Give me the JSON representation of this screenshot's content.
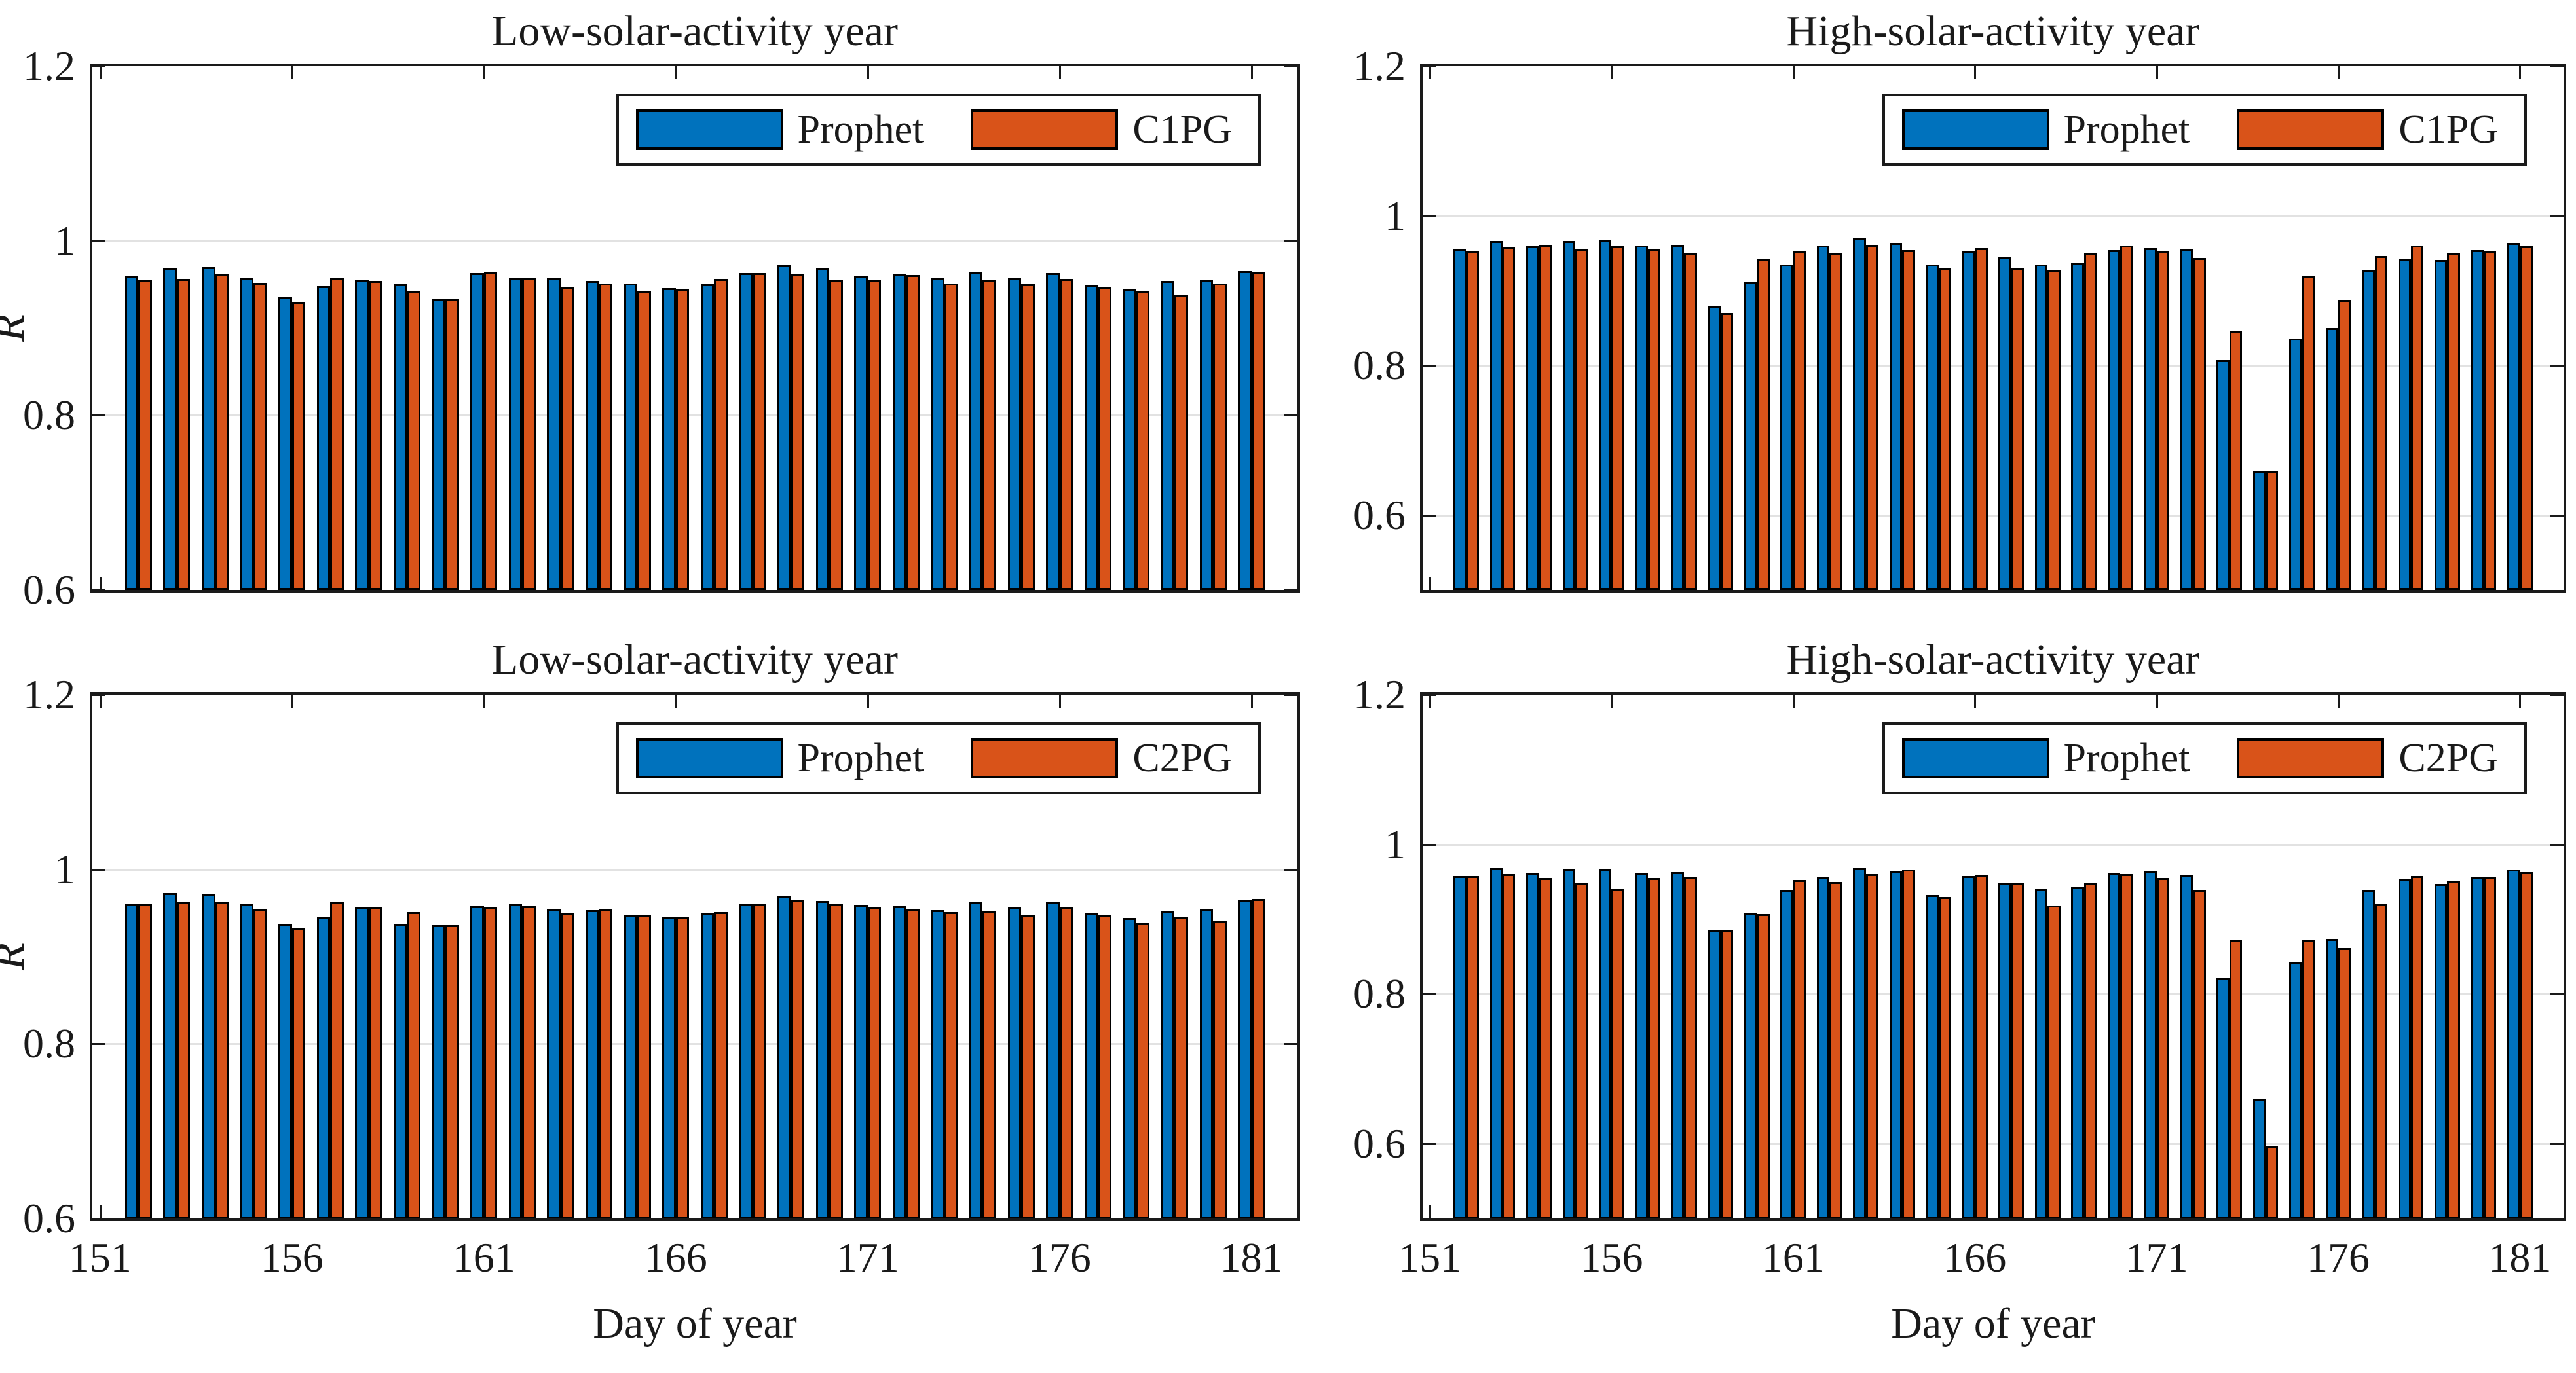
{
  "figure": {
    "background": "#ffffff"
  },
  "colors": {
    "prophet_blue": "#0072BD",
    "model_orange": "#D95319",
    "bar_edge": "#000000",
    "grid": "#E2E2E2",
    "axis": "#1A1A1A"
  },
  "chart_data": [
    {
      "type": "bar",
      "title": "Low-solar-activity year",
      "ylabel": "R",
      "xlabel": "",
      "ylim": [
        0.6,
        1.2
      ],
      "yticks": [
        1.2,
        1,
        0.8,
        0.6
      ],
      "ytick_labels": [
        "1.2",
        "1",
        "0.8",
        "0.6"
      ],
      "xlim": [
        150.8,
        182.2
      ],
      "xticks": [
        151,
        156,
        161,
        166,
        171,
        176,
        181
      ],
      "show_xtick_labels": false,
      "legend_position": "top-right",
      "grid": "horizontal",
      "days": [
        152,
        153,
        154,
        155,
        156,
        157,
        158,
        159,
        160,
        161,
        162,
        163,
        164,
        165,
        166,
        167,
        168,
        169,
        170,
        171,
        172,
        173,
        174,
        175,
        176,
        177,
        178,
        179,
        180,
        181
      ],
      "series": [
        {
          "name": "Prophet",
          "values": [
            0.959,
            0.969,
            0.97,
            0.957,
            0.935,
            0.948,
            0.955,
            0.95,
            0.934,
            0.963,
            0.957,
            0.957,
            0.954,
            0.951,
            0.946,
            0.95,
            0.963,
            0.972,
            0.968,
            0.959,
            0.962,
            0.958,
            0.964,
            0.957,
            0.963,
            0.949,
            0.945,
            0.954,
            0.955,
            0.965
          ]
        },
        {
          "name": "C1PG",
          "values": [
            0.955,
            0.956,
            0.962,
            0.952,
            0.93,
            0.958,
            0.954,
            0.943,
            0.934,
            0.964,
            0.957,
            0.947,
            0.951,
            0.942,
            0.944,
            0.956,
            0.963,
            0.962,
            0.955,
            0.955,
            0.961,
            0.951,
            0.955,
            0.95,
            0.956,
            0.947,
            0.943,
            0.938,
            0.951,
            0.964
          ]
        }
      ]
    },
    {
      "type": "bar",
      "title": "High-solar-activity year",
      "ylabel": "",
      "xlabel": "",
      "ylim": [
        0.5,
        1.2
      ],
      "yticks": [
        1.2,
        1,
        0.8,
        0.6
      ],
      "ytick_labels": [
        "1.2",
        "1",
        "0.8",
        "0.6"
      ],
      "xlim": [
        150.8,
        182.2
      ],
      "xticks": [
        151,
        156,
        161,
        166,
        171,
        176,
        181
      ],
      "show_xtick_labels": false,
      "legend_position": "top-right",
      "grid": "horizontal",
      "days": [
        152,
        153,
        154,
        155,
        156,
        157,
        158,
        159,
        160,
        161,
        162,
        163,
        164,
        165,
        166,
        167,
        168,
        169,
        170,
        171,
        172,
        173,
        174,
        175,
        176,
        177,
        178,
        179,
        180,
        181
      ],
      "series": [
        {
          "name": "Prophet",
          "values": [
            0.955,
            0.966,
            0.959,
            0.966,
            0.967,
            0.96,
            0.961,
            0.88,
            0.912,
            0.935,
            0.96,
            0.97,
            0.964,
            0.935,
            0.952,
            0.945,
            0.935,
            0.937,
            0.954,
            0.957,
            0.955,
            0.807,
            0.658,
            0.836,
            0.85,
            0.928,
            0.943,
            0.941,
            0.954,
            0.964
          ]
        },
        {
          "name": "C1PG",
          "values": [
            0.952,
            0.958,
            0.961,
            0.955,
            0.959,
            0.956,
            0.95,
            0.87,
            0.943,
            0.952,
            0.95,
            0.961,
            0.954,
            0.93,
            0.957,
            0.93,
            0.928,
            0.95,
            0.96,
            0.952,
            0.944,
            0.846,
            0.659,
            0.92,
            0.888,
            0.946,
            0.96,
            0.95,
            0.953,
            0.959
          ]
        }
      ]
    },
    {
      "type": "bar",
      "title": "Low-solar-activity year",
      "ylabel": "R",
      "xlabel": "Day of year",
      "ylim": [
        0.6,
        1.2
      ],
      "yticks": [
        1.2,
        1,
        0.8,
        0.6
      ],
      "ytick_labels": [
        "1.2",
        "1",
        "0.8",
        "0.6"
      ],
      "xlim": [
        150.8,
        182.2
      ],
      "xticks": [
        151,
        156,
        161,
        166,
        171,
        176,
        181
      ],
      "show_xtick_labels": true,
      "legend_position": "top-right",
      "grid": "horizontal",
      "days": [
        152,
        153,
        154,
        155,
        156,
        157,
        158,
        159,
        160,
        161,
        162,
        163,
        164,
        165,
        166,
        167,
        168,
        169,
        170,
        171,
        172,
        173,
        174,
        175,
        176,
        177,
        178,
        179,
        180,
        181
      ],
      "series": [
        {
          "name": "Prophet",
          "values": [
            0.96,
            0.973,
            0.972,
            0.96,
            0.937,
            0.946,
            0.956,
            0.937,
            0.936,
            0.958,
            0.96,
            0.955,
            0.953,
            0.947,
            0.945,
            0.95,
            0.96,
            0.97,
            0.964,
            0.959,
            0.958,
            0.953,
            0.963,
            0.956,
            0.963,
            0.95,
            0.944,
            0.952,
            0.954,
            0.965
          ]
        },
        {
          "name": "C2PG",
          "values": [
            0.96,
            0.962,
            0.962,
            0.954,
            0.933,
            0.963,
            0.956,
            0.951,
            0.936,
            0.957,
            0.958,
            0.95,
            0.955,
            0.947,
            0.946,
            0.951,
            0.961,
            0.965,
            0.961,
            0.957,
            0.955,
            0.951,
            0.952,
            0.948,
            0.957,
            0.948,
            0.938,
            0.945,
            0.941,
            0.966
          ]
        }
      ]
    },
    {
      "type": "bar",
      "title": "High-solar-activity year",
      "ylabel": "",
      "xlabel": "Day of year",
      "ylim": [
        0.5,
        1.2
      ],
      "yticks": [
        1.2,
        1,
        0.8,
        0.6
      ],
      "ytick_labels": [
        "1.2",
        "1",
        "0.8",
        "0.6"
      ],
      "xlim": [
        150.8,
        182.2
      ],
      "xticks": [
        151,
        156,
        161,
        166,
        171,
        176,
        181
      ],
      "show_xtick_labels": true,
      "legend_position": "top-right",
      "grid": "horizontal",
      "days": [
        152,
        153,
        154,
        155,
        156,
        157,
        158,
        159,
        160,
        161,
        162,
        163,
        164,
        165,
        166,
        167,
        168,
        169,
        170,
        171,
        172,
        173,
        174,
        175,
        176,
        177,
        178,
        179,
        180,
        181
      ],
      "series": [
        {
          "name": "Prophet",
          "values": [
            0.958,
            0.968,
            0.962,
            0.967,
            0.967,
            0.962,
            0.963,
            0.885,
            0.908,
            0.938,
            0.957,
            0.968,
            0.964,
            0.932,
            0.958,
            0.949,
            0.94,
            0.943,
            0.962,
            0.964,
            0.959,
            0.821,
            0.66,
            0.843,
            0.874,
            0.939,
            0.954,
            0.947,
            0.957,
            0.966
          ]
        },
        {
          "name": "C2PG",
          "values": [
            0.958,
            0.96,
            0.955,
            0.948,
            0.94,
            0.955,
            0.957,
            0.885,
            0.907,
            0.952,
            0.95,
            0.96,
            0.966,
            0.93,
            0.959,
            0.949,
            0.918,
            0.949,
            0.96,
            0.955,
            0.939,
            0.872,
            0.597,
            0.873,
            0.861,
            0.92,
            0.958,
            0.951,
            0.957,
            0.963
          ]
        }
      ]
    }
  ]
}
